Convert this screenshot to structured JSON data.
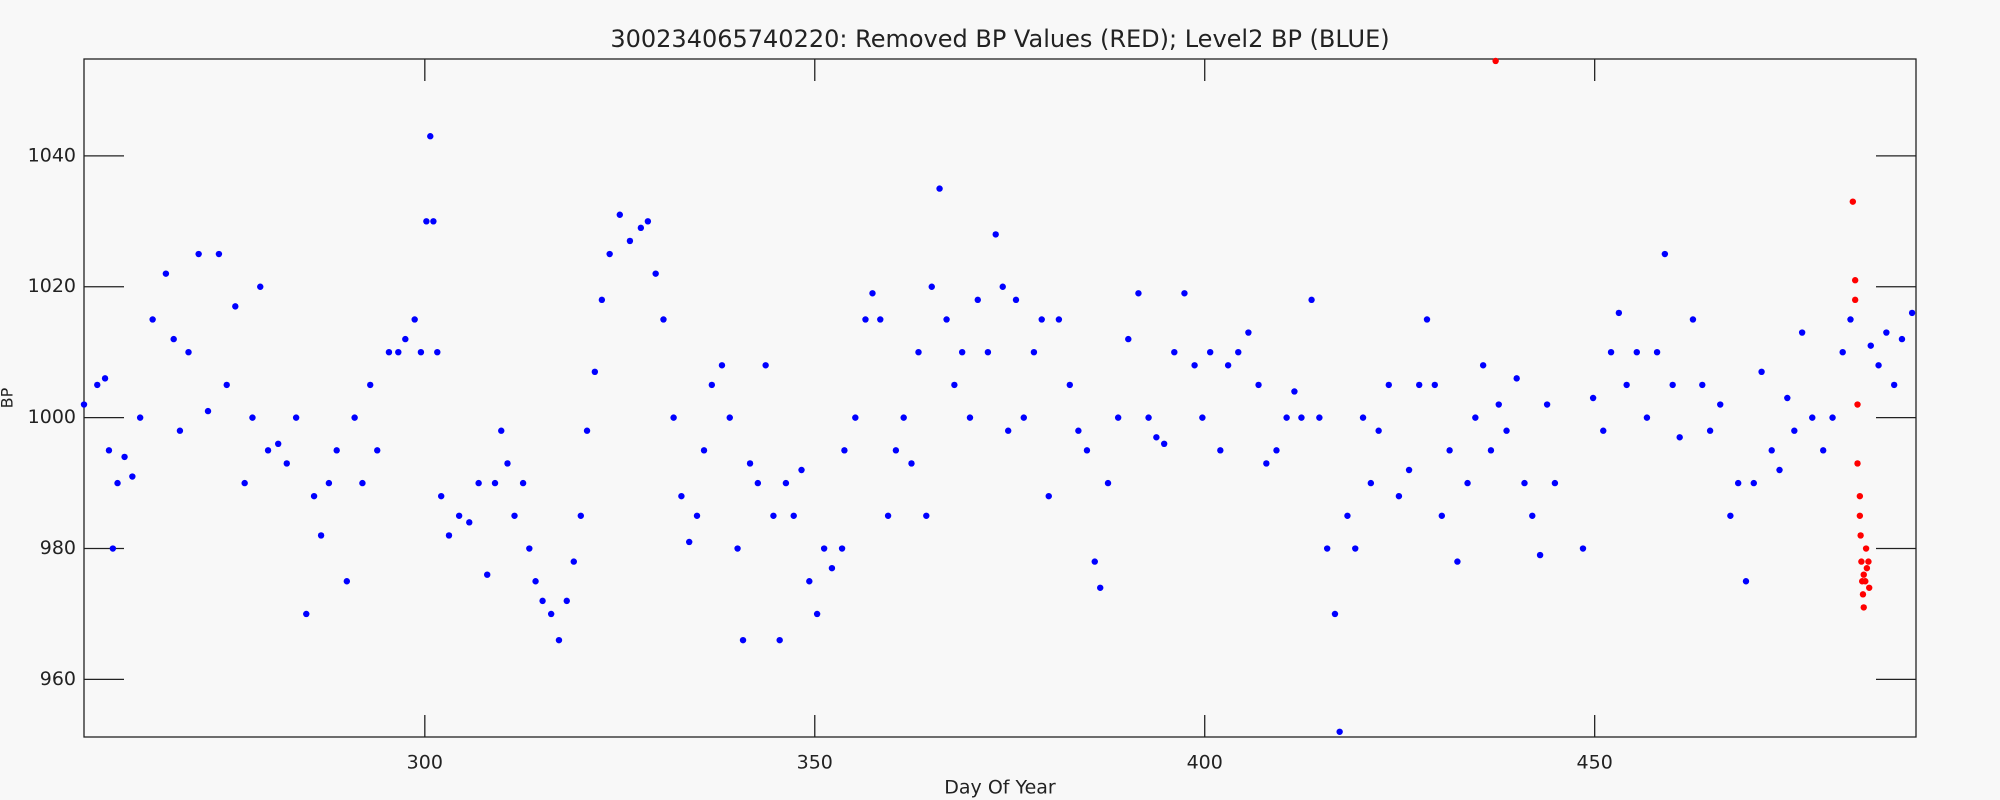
{
  "chart_data": {
    "type": "scatter",
    "title": "300234065740220: Removed BP Values (RED); Level2 BP (BLUE)",
    "x_label": "Day Of Year",
    "y_label": "BP",
    "xlim": [
      256.3,
      491.2
    ],
    "ylim": [
      951.2,
      1054.8
    ],
    "xticks": [
      300,
      350,
      400,
      450
    ],
    "yticks": [
      960,
      980,
      1000,
      1020,
      1040
    ],
    "grid": false,
    "series": [
      {
        "color": "#0000ff",
        "x": [
          256.3,
          258,
          259,
          259.5,
          260,
          260.6,
          261.5,
          262.5,
          263.5,
          265.1,
          266.8,
          267.8,
          268.6,
          269.7,
          271,
          272.2,
          273.6,
          274.6,
          275.7,
          276.9,
          277.9,
          278.9,
          279.9,
          281.2,
          282.3,
          283.5,
          284.8,
          285.8,
          286.7,
          287.7,
          288.7,
          290,
          291,
          292,
          293,
          293.9,
          295.4,
          296.6,
          297.5,
          298.7,
          299.5,
          300.2,
          300.7,
          301.1,
          301.6,
          302.1,
          303.1,
          304.4,
          305.7,
          306.9,
          308,
          309,
          309.8,
          310.6,
          311.5,
          312.6,
          313.4,
          314.2,
          315.1,
          316.2,
          317.2,
          318.2,
          319.1,
          320,
          320.8,
          321.8,
          322.7,
          323.7,
          325,
          326.3,
          327.7,
          328.6,
          329.6,
          330.6,
          331.9,
          332.9,
          333.9,
          334.9,
          335.8,
          336.8,
          338.1,
          339.1,
          340.1,
          340.8,
          341.7,
          342.7,
          343.7,
          344.7,
          345.5,
          346.3,
          347.3,
          348.3,
          349.3,
          350.3,
          351.2,
          352.2,
          353.5,
          353.8,
          355.2,
          356.5,
          357.4,
          358.4,
          359.4,
          360.4,
          361.4,
          362.4,
          363.3,
          364.3,
          365,
          366,
          366.9,
          367.9,
          368.9,
          369.9,
          370.9,
          372.2,
          373.2,
          374.1,
          374.8,
          375.8,
          376.8,
          378.1,
          379.1,
          380,
          381.3,
          382.7,
          383.8,
          384.9,
          385.9,
          386.6,
          387.6,
          388.9,
          390.2,
          391.5,
          392.8,
          393.8,
          394.8,
          396.1,
          397.4,
          398.7,
          399.7,
          400.7,
          402,
          403,
          404.3,
          405.6,
          406.9,
          407.9,
          409.2,
          410.5,
          411.5,
          412.4,
          413.7,
          414.7,
          415.7,
          416.7,
          417.3,
          418.3,
          419.3,
          420.3,
          421.3,
          422.3,
          423.6,
          424.9,
          426.2,
          427.5,
          428.5,
          429.5,
          430.4,
          431.4,
          432.4,
          433.7,
          434.7,
          435.7,
          436.7,
          437.7,
          438.7,
          440,
          441,
          442,
          443,
          443.9,
          444.9,
          448.5,
          449.8,
          451.1,
          452.1,
          453.1,
          454.1,
          455.4,
          456.7,
          458,
          459,
          460,
          460.9,
          462.6,
          463.8,
          464.8,
          466.1,
          467.4,
          468.4,
          469.4,
          470.4,
          471.4,
          472.7,
          473.7,
          474.7,
          475.6,
          476.6,
          477.9,
          479.3,
          480.5,
          481.8,
          482.8,
          485.4,
          486.4,
          487.4,
          488.4,
          489.4,
          490.7
        ],
        "values": [
          1002,
          1005,
          1006,
          995,
          980,
          990,
          994,
          991,
          1000,
          1015,
          1022,
          1012,
          998,
          1010,
          1025,
          1001,
          1025,
          1005,
          1017,
          990,
          1000,
          1020,
          995,
          996,
          993,
          1000,
          970,
          988,
          982,
          990,
          995,
          975,
          1000,
          990,
          1005,
          995,
          1010,
          1010,
          1012,
          1015,
          1010,
          1030,
          1043,
          1030,
          1010,
          988,
          982,
          985,
          984,
          990,
          976,
          990,
          998,
          993,
          985,
          990,
          980,
          975,
          972,
          970,
          966,
          972,
          978,
          985,
          998,
          1007,
          1018,
          1025,
          1031,
          1027,
          1029,
          1030,
          1022,
          1015,
          1000,
          988,
          981,
          985,
          995,
          1005,
          1008,
          1000,
          980,
          966,
          993,
          990,
          1008,
          985,
          966,
          990,
          985,
          992,
          975,
          970,
          980,
          977,
          980,
          995,
          1000,
          1015,
          1019,
          1015,
          985,
          995,
          1000,
          993,
          1010,
          985,
          1020,
          1035,
          1015,
          1005,
          1010,
          1000,
          1018,
          1010,
          1028,
          1020,
          998,
          1018,
          1000,
          1010,
          1015,
          988,
          1015,
          1005,
          998,
          995,
          978,
          974,
          990,
          1000,
          1012,
          1019,
          1000,
          997,
          996,
          1010,
          1019,
          1008,
          1000,
          1010,
          995,
          1008,
          1010,
          1013,
          1005,
          993,
          995,
          1000,
          1004,
          1000,
          1018,
          1000,
          980,
          970,
          952,
          985,
          980,
          1000,
          990,
          998,
          1005,
          988,
          992,
          1005,
          1015,
          1005,
          985,
          995,
          978,
          990,
          1000,
          1008,
          995,
          1002,
          998,
          1006,
          990,
          985,
          979,
          1002,
          990,
          980,
          1003,
          998,
          1010,
          1016,
          1005,
          1010,
          1000,
          1010,
          1025,
          1005,
          997,
          1015,
          1005,
          998,
          1002,
          985,
          990,
          975,
          990,
          1007,
          995,
          992,
          1003,
          998,
          1013,
          1000,
          995,
          1000,
          1010,
          1015,
          1011,
          1008,
          1013,
          1005,
          1012,
          1016
        ]
      },
      {
        "color": "#ff0000",
        "x": [
          437.3,
          483.1,
          483.4,
          483.4,
          483.7,
          483.7,
          484,
          484,
          484.1,
          484.2,
          484.3,
          484.4,
          484.5,
          484.5,
          484.7,
          484.8,
          484.9,
          485.1,
          485.2
        ],
        "values": [
          1054.5,
          1033,
          1018,
          1021,
          1002,
          993,
          988,
          985,
          982,
          978,
          975,
          973,
          976,
          971,
          975,
          980,
          977,
          978,
          974
        ]
      }
    ]
  }
}
